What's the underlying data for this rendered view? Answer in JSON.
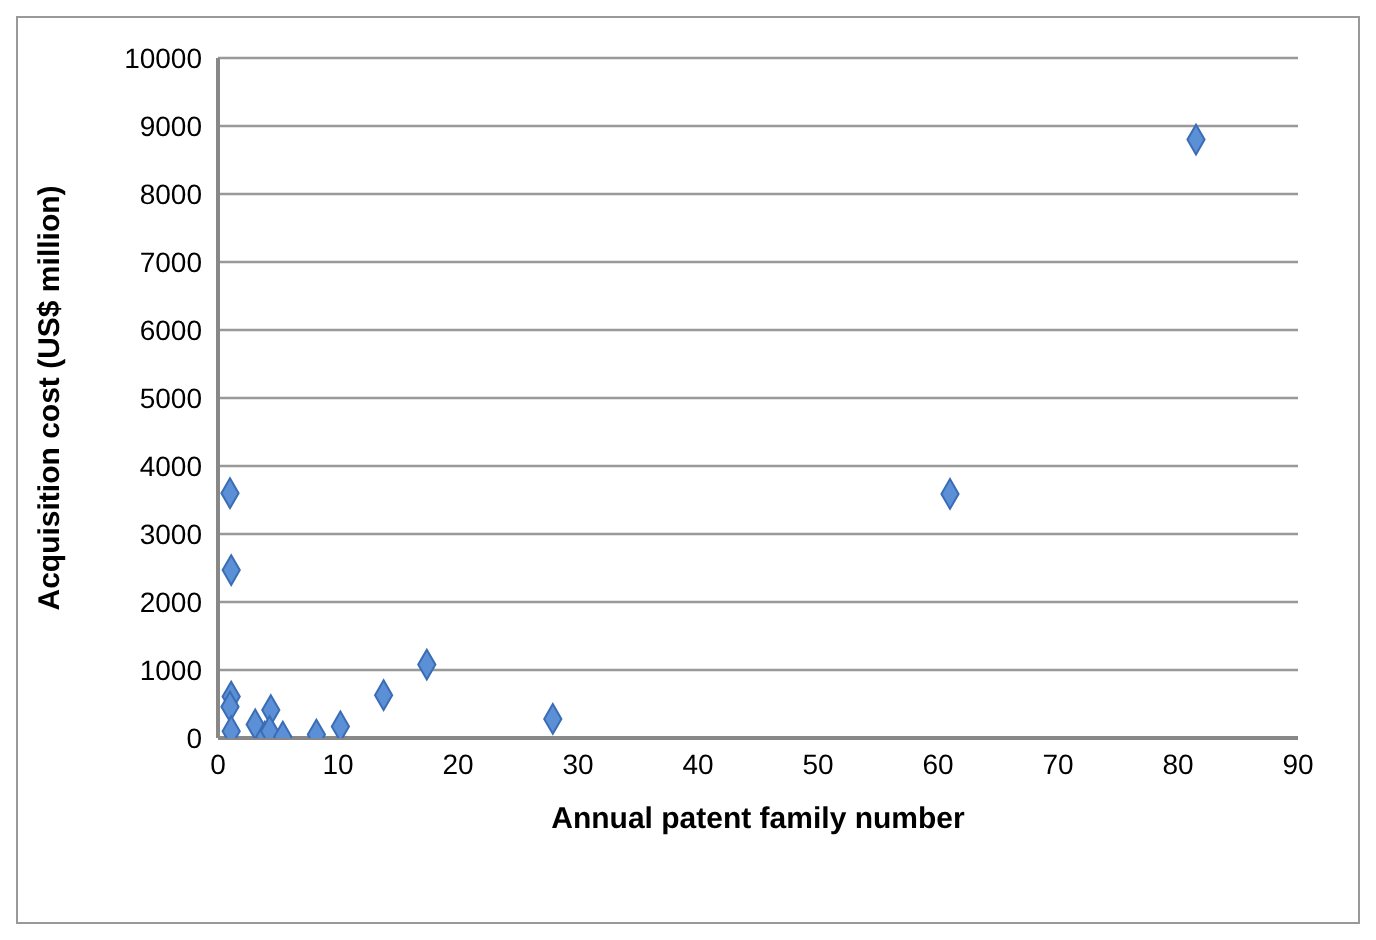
{
  "chart_data": {
    "type": "scatter",
    "xlabel": "Annual patent family number",
    "ylabel": "Acquisition cost (US$ million)",
    "series": [
      {
        "color": "#5b8fd6",
        "x": [
          1.0,
          1.1,
          1.1,
          1.0,
          1.1,
          3.1,
          4.4,
          3.9,
          4.3,
          5.4,
          8.2,
          10.2,
          13.8,
          17.4,
          27.9,
          61,
          81.5
        ],
        "values": [
          3600,
          2470,
          610,
          460,
          100,
          200,
          410,
          20,
          100,
          20,
          50,
          170,
          630,
          1080,
          280,
          3590,
          8800
        ]
      }
    ],
    "marker": "diamond",
    "xlim": [
      0,
      90
    ],
    "xticks": [
      0,
      10,
      20,
      30,
      40,
      50,
      60,
      70,
      80,
      90
    ],
    "ylim": [
      0,
      10000
    ],
    "yticks": [
      0,
      1000,
      2000,
      3000,
      4000,
      5000,
      6000,
      7000,
      8000,
      9000,
      10000
    ],
    "grid": "y",
    "legend": false
  }
}
